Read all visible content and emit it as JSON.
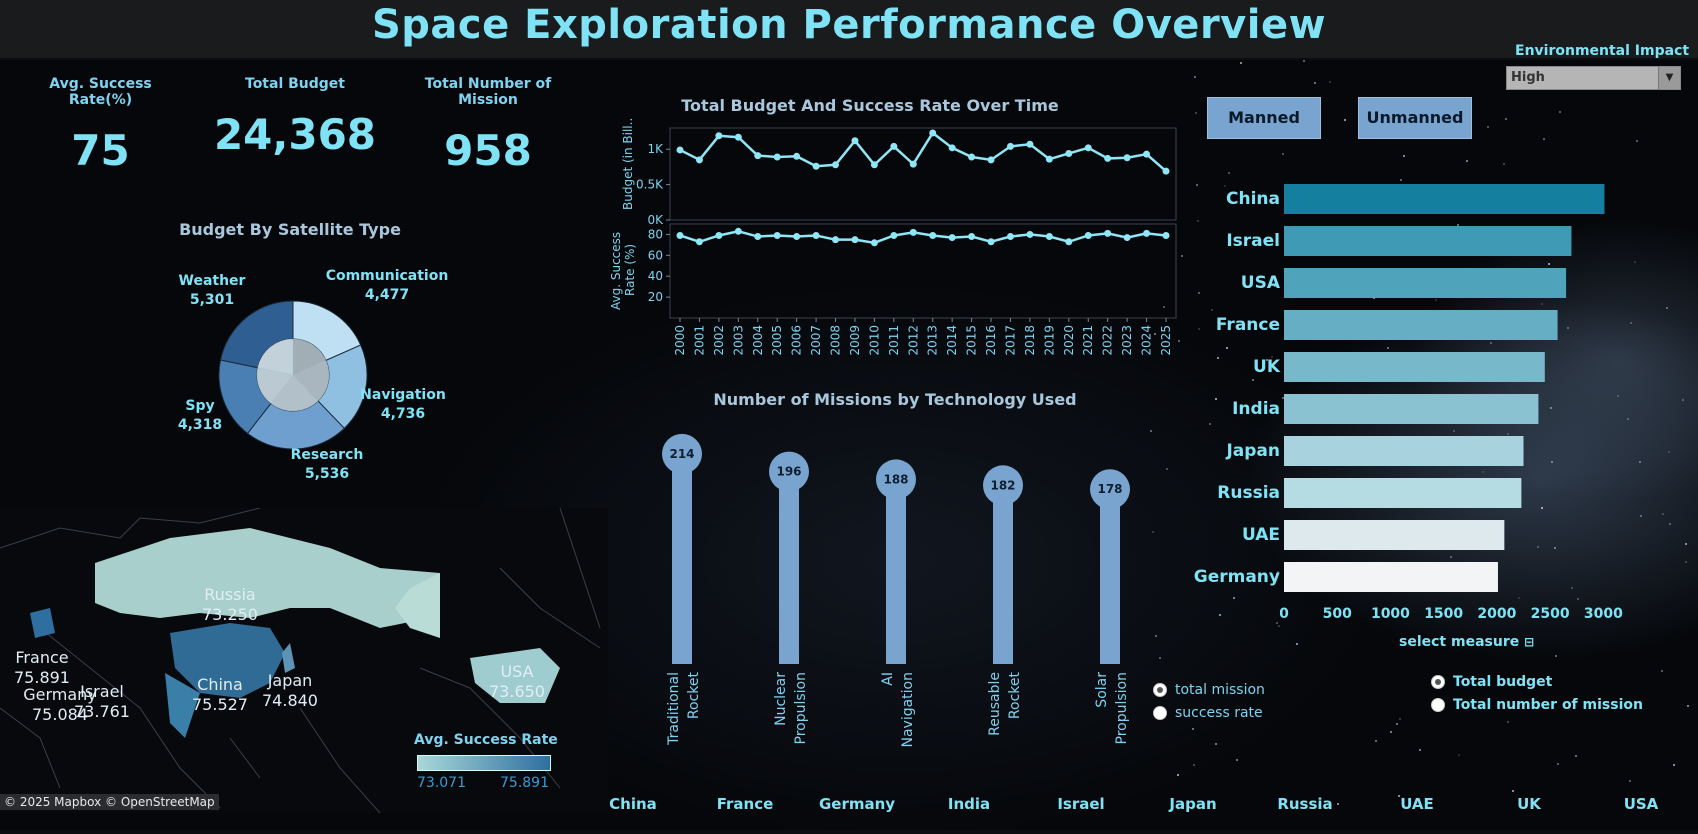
{
  "header": {
    "title": "Space Exploration Performance Overview"
  },
  "kpis": [
    {
      "label": "Avg. Success Rate(%)",
      "value": "75"
    },
    {
      "label": "Total Budget",
      "value": "24,368"
    },
    {
      "label": "Total Number of Mission",
      "value": "958"
    }
  ],
  "filters": {
    "environmental_impact_label": "Environmental Impact",
    "environmental_impact_value": "High",
    "mission_type_buttons": [
      "Manned",
      "Unmanned"
    ]
  },
  "pie_section": {
    "title": "Budget  By Satellite Type"
  },
  "line_section": {
    "title": "Total Budget  And Success Rate Over Time",
    "y1_label": "Budget  (in Bill..",
    "y2_label_line1": "Avg. Success",
    "y2_label_line2": "Rate (%)",
    "y1_ticks": [
      "1K",
      "0.5K",
      "0K"
    ],
    "y2_ticks": [
      "80",
      "60",
      "40",
      "20"
    ]
  },
  "lollipop_section": {
    "title": "Number of Missions  by Technology Used"
  },
  "map_section": {
    "legend_title": "Avg. Success Rate",
    "legend_min": "73.071",
    "legend_max": "75.891",
    "attribution": "© 2025 Mapbox © OpenStreetMap",
    "labels": [
      {
        "name": "Russia",
        "value": "73.250"
      },
      {
        "name": "France",
        "value": "75.891"
      },
      {
        "name": "Germany",
        "value": "75.084"
      },
      {
        "name": "Israel",
        "value": "73.761"
      },
      {
        "name": "China",
        "value": "75.527"
      },
      {
        "name": "Japan",
        "value": "74.840"
      },
      {
        "name": "USA",
        "value": "73.650"
      }
    ]
  },
  "controls": {
    "tech_measure_options": [
      "total mission",
      "success rate"
    ],
    "tech_measure_selected": 0,
    "select_measure_label": "select measure",
    "country_measure_options": [
      "Total budget",
      "Total number of mission"
    ],
    "country_measure_selected": 0
  },
  "country_tabs": [
    "China",
    "France",
    "Germany",
    "India",
    "Israel",
    "Japan",
    "Russia",
    "UAE",
    "UK",
    "USA"
  ],
  "chart_data": [
    {
      "type": "pie",
      "title": "Budget  By Satellite Type",
      "categories": [
        "Communication",
        "Navigation",
        "Research",
        "Spy",
        "Weather"
      ],
      "values": [
        4477,
        4736,
        5536,
        4318,
        5301
      ],
      "display_values": [
        "4,477",
        "4,736",
        "5,536",
        "4,318",
        "5,301"
      ],
      "colors": [
        "#bfe0f2",
        "#8fc0e2",
        "#6f9fcf",
        "#4a7fb3",
        "#2f5f92"
      ]
    },
    {
      "type": "line",
      "title": "Total Budget  And Success Rate Over Time",
      "x": [
        "2000",
        "2001",
        "2002",
        "2003",
        "2004",
        "2005",
        "2006",
        "2007",
        "2008",
        "2009",
        "2010",
        "2011",
        "2012",
        "2013",
        "2014",
        "2015",
        "2016",
        "2017",
        "2018",
        "2019",
        "2020",
        "2021",
        "2022",
        "2023",
        "2024",
        "2025"
      ],
      "series": [
        {
          "values": [
            990,
            850,
            1190,
            1170,
            910,
            890,
            900,
            760,
            780,
            1120,
            780,
            1040,
            790,
            1230,
            1020,
            890,
            850,
            1040,
            1070,
            860,
            940,
            1020,
            870,
            880,
            930,
            690
          ]
        },
        {
          "values": [
            79,
            73,
            79,
            83,
            78,
            79,
            78,
            79,
            75,
            75,
            72,
            79,
            82,
            79,
            77,
            78,
            73,
            78,
            80,
            78,
            73,
            79,
            81,
            77,
            81,
            79
          ]
        }
      ],
      "y1_range": [
        0,
        1300
      ],
      "y2_range": [
        0,
        90
      ],
      "line_color": "#8fe6f5"
    },
    {
      "type": "bar",
      "title": "Number of Missions  by Technology Used",
      "categories": [
        "Traditional Rocket",
        "Nuclear Propulsion",
        "AI Navigation",
        "Reusable Rocket",
        "Solar Propulsion"
      ],
      "category_lines": [
        [
          "Traditional",
          "Rocket"
        ],
        [
          "Nuclear",
          "Propulsion"
        ],
        [
          "AI",
          "Navigation"
        ],
        [
          "Reusable",
          "Rocket"
        ],
        [
          "Solar",
          "Propulsion"
        ]
      ],
      "values": [
        214,
        196,
        188,
        182,
        178
      ],
      "ylim": [
        0,
        220
      ],
      "color": "#78a4cf"
    },
    {
      "type": "bar",
      "orientation": "horizontal",
      "categories": [
        "China",
        "Israel",
        "USA",
        "France",
        "UK",
        "India",
        "Japan",
        "Russia",
        "UAE",
        "Germany"
      ],
      "values": [
        3010,
        2700,
        2650,
        2570,
        2450,
        2390,
        2250,
        2230,
        2070,
        2010
      ],
      "xlim": [
        0,
        3100
      ],
      "x_ticks": [
        "0",
        "500",
        "1000",
        "1500",
        "2000",
        "2500",
        "3000"
      ],
      "colors": [
        "#157f9f",
        "#3e9ab5",
        "#4fa3bb",
        "#65aec3",
        "#78b8cb",
        "#8ac2d2",
        "#a8d3de",
        "#b5dbe3",
        "#dde9ec",
        "#f2f4f5"
      ]
    }
  ]
}
